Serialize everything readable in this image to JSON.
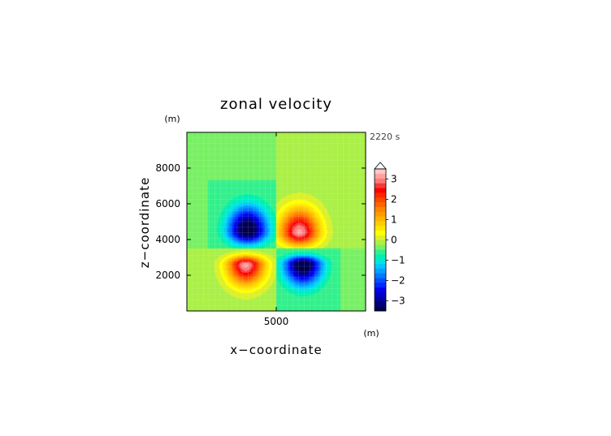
{
  "chart_data": {
    "type": "heatmap",
    "title": "zonal velocity",
    "xlabel": "x−coordinate",
    "ylabel": "z−coordinate",
    "x_unit": "(m)",
    "z_unit": "(m)",
    "time_label": "2220 s",
    "xlim": [
      0,
      10000
    ],
    "zlim": [
      0,
      10000
    ],
    "x_ticks": [
      {
        "value": 5000,
        "label": "5000"
      }
    ],
    "z_ticks": [
      {
        "value": 2000,
        "label": "2000"
      },
      {
        "value": 4000,
        "label": "4000"
      },
      {
        "value": 6000,
        "label": "6000"
      },
      {
        "value": 8000,
        "label": "8000"
      }
    ],
    "colorbar": {
      "min": -3.5,
      "max": 3.5,
      "step": 0.25,
      "ticks": [
        {
          "value": 3,
          "label": "3"
        },
        {
          "value": 2,
          "label": "2"
        },
        {
          "value": 1,
          "label": "1"
        },
        {
          "value": 0,
          "label": "0"
        },
        {
          "value": -1,
          "label": "−1"
        },
        {
          "value": -2,
          "label": "−2"
        },
        {
          "value": -3,
          "label": "−3"
        }
      ],
      "colors": [
        "#000050",
        "#000078",
        "#0000a0",
        "#0000c8",
        "#0000f0",
        "#0028ff",
        "#0050ff",
        "#0078ff",
        "#00a0ff",
        "#00c8ff",
        "#00e6dc",
        "#00f0b4",
        "#32f08c",
        "#78f064",
        "#aaf046",
        "#dcf028",
        "#ffff00",
        "#ffe600",
        "#ffcd00",
        "#ffb400",
        "#ff9b00",
        "#ff8200",
        "#ff6400",
        "#ff4600",
        "#ff2800",
        "#ff0000",
        "#f03c3c",
        "#ff7878",
        "#ffa0a0",
        "#ffc8c8"
      ]
    },
    "field": {
      "background": [
        {
          "x_range": [
            0,
            5000
          ],
          "z_range": [
            3500,
            10000
          ],
          "value": -0.25
        },
        {
          "x_range": [
            5000,
            10000
          ],
          "z_range": [
            3500,
            10000
          ],
          "value": 0.1
        },
        {
          "x_range": [
            0,
            5000
          ],
          "z_range": [
            0,
            3500
          ],
          "value": 0.1
        },
        {
          "x_range": [
            5000,
            10000
          ],
          "z_range": [
            0,
            3500
          ],
          "value": -0.25
        }
      ],
      "cells": [
        {
          "x0": 1200,
          "x1": 5000,
          "zb": 3500,
          "zt": 7300,
          "amp": -3.5,
          "cx": 3400,
          "cz": 4500,
          "sx": 1050,
          "up": 1250,
          "dn": 700
        },
        {
          "x0": 5000,
          "x1": 8900,
          "zb": 3500,
          "zt": 7300,
          "amp": 3.5,
          "cx": 6300,
          "cz": 4400,
          "sx": 1050,
          "up": 1250,
          "dn": 700
        },
        {
          "x0": 1300,
          "x1": 5000,
          "zb": 0,
          "zt": 3500,
          "amp": 3.5,
          "cx": 3300,
          "cz": 2600,
          "sx": 1000,
          "up": 450,
          "dn": 1100
        },
        {
          "x0": 5000,
          "x1": 8600,
          "zb": 0,
          "zt": 3500,
          "amp": -3.5,
          "cx": 6500,
          "cz": 2600,
          "sx": 1000,
          "up": 450,
          "dn": 1100
        }
      ]
    }
  }
}
